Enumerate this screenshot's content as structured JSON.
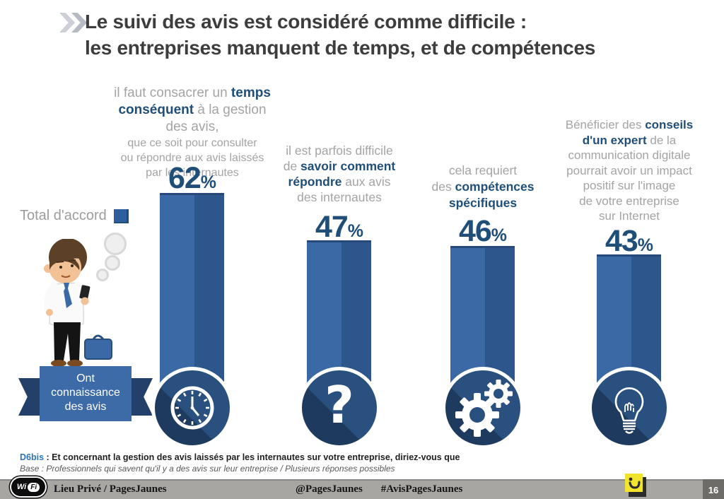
{
  "title": {
    "line1": "Le suivi des avis est considéré comme difficile :",
    "line2": "les entreprises manquent de temps, et de compétences"
  },
  "legend": {
    "label": "Total d'accord"
  },
  "ribbon": {
    "line1": "Ont",
    "line2": "connaissance",
    "line3": "des avis"
  },
  "columns": [
    {
      "value": "62",
      "unit": "%",
      "icon": "clock",
      "lines": [
        {
          "size": "lg",
          "seg": [
            {
              "t": "il faut consacrer un "
            },
            {
              "t": "temps",
              "b": true
            }
          ]
        },
        {
          "size": "lg",
          "seg": [
            {
              "t": "conséquent",
              "b": true
            },
            {
              "t": " à la gestion"
            }
          ]
        },
        {
          "size": "lg",
          "seg": [
            {
              "t": "des avis,"
            }
          ]
        },
        {
          "size": "sm",
          "seg": [
            {
              "t": "que ce soit pour consulter"
            }
          ]
        },
        {
          "size": "sm",
          "seg": [
            {
              "t": "ou répondre aux avis laissés"
            }
          ]
        },
        {
          "size": "sm",
          "seg": [
            {
              "t": "par les internautes"
            }
          ]
        }
      ]
    },
    {
      "value": "47",
      "unit": "%",
      "icon": "question-mark",
      "lines": [
        {
          "seg": [
            {
              "t": "il est parfois difficile"
            }
          ]
        },
        {
          "seg": [
            {
              "t": "de "
            },
            {
              "t": "savoir comment",
              "b": true
            }
          ]
        },
        {
          "seg": [
            {
              "t": "répondre",
              "b": true
            },
            {
              "t": " aux avis"
            }
          ]
        },
        {
          "seg": [
            {
              "t": "des internautes"
            }
          ]
        }
      ]
    },
    {
      "value": "46",
      "unit": "%",
      "icon": "gears",
      "lines": [
        {
          "seg": [
            {
              "t": "cela requiert"
            }
          ]
        },
        {
          "seg": [
            {
              "t": "des "
            },
            {
              "t": "compétences",
              "b": true
            }
          ]
        },
        {
          "seg": [
            {
              "t": "spécifiques",
              "b": true
            }
          ]
        }
      ]
    },
    {
      "value": "43",
      "unit": "%",
      "icon": "lightbulb",
      "lines": [
        {
          "seg": [
            {
              "t": "Bénéficier des "
            },
            {
              "t": "conseils",
              "b": true
            }
          ]
        },
        {
          "seg": [
            {
              "t": "d'un expert",
              "b": true
            },
            {
              "t": " de la"
            }
          ]
        },
        {
          "seg": [
            {
              "t": "communication digitale"
            }
          ]
        },
        {
          "seg": [
            {
              "t": "pourrait avoir un impact"
            }
          ]
        },
        {
          "seg": [
            {
              "t": "positif sur l'image"
            }
          ]
        },
        {
          "seg": [
            {
              "t": "de votre entreprise"
            }
          ]
        },
        {
          "seg": [
            {
              "t": "sur Internet"
            }
          ]
        }
      ]
    }
  ],
  "chart_data": {
    "type": "bar",
    "title": "Le suivi des avis est considéré comme difficile : les entreprises manquent de temps, et de compétences",
    "legend": "Total d'accord",
    "unit": "%",
    "categories": [
      "il faut consacrer un temps conséquent à la gestion des avis, que ce soit pour consulter ou répondre aux avis laissés par les internautes",
      "il est parfois difficile de savoir comment répondre aux avis des internautes",
      "cela requiert des compétences spécifiques",
      "Bénéficier des conseils d'un expert de la communication digitale pourrait avoir un impact positif sur l'image de votre entreprise sur Internet"
    ],
    "values": [
      62,
      47,
      46,
      43
    ],
    "icons": [
      "clock",
      "question-mark",
      "gears",
      "lightbulb"
    ],
    "population_label": "Ont connaissance des avis",
    "ylim": [
      0,
      100
    ]
  },
  "footnote": {
    "code": "D6bis",
    "text": " : Et concernant la gestion des avis laissés par les internautes sur votre entreprise,  diriez-vous que",
    "base": "Base : Professionnels qui savent qu'il y a des avis sur leur entreprise / Plusieurs réponses possibles"
  },
  "footer": {
    "wifi_wi": "Wi",
    "wifi_fi": "Fi",
    "venue": "Lieu Privé / PagesJaunes",
    "handle": "@PagesJaunes",
    "hashtag": "#AvisPagesJaunes",
    "page": "16"
  },
  "colors": {
    "navy_text": "#1F4E79",
    "gray_text": "#A4A4A4",
    "bar_light": "#3A69A6",
    "bar_dark": "#2C568C",
    "circle_fill": "#2A5080",
    "circle_shadow": "#1E3A5E",
    "ribbon_blue": "#3D6BA8",
    "ribbon_dark": "#23406B",
    "pagesjaunes_yellow": "#F2E32C",
    "footer_gray": "#A8A6A3"
  }
}
